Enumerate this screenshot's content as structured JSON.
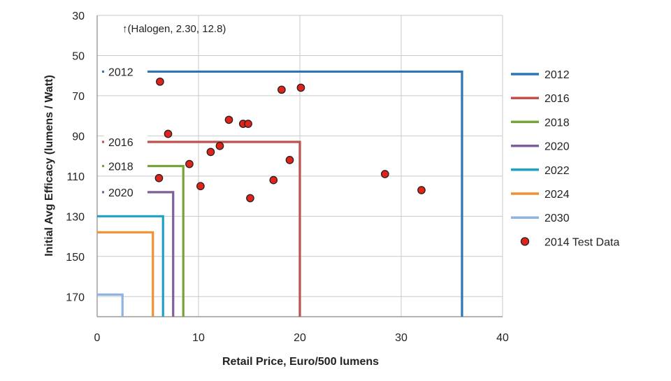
{
  "chart_data": {
    "type": "line",
    "xlabel": "Retail Price, Euro/500 lumens",
    "ylabel": "Initial Avg Efficacy (lumens / Watt)",
    "xlim": [
      0,
      40
    ],
    "ylim": [
      30,
      180
    ],
    "y_reversed": true,
    "xticks": [
      0,
      10,
      20,
      30,
      40
    ],
    "yticks": [
      30,
      50,
      70,
      90,
      110,
      130,
      150,
      170
    ],
    "grid": true,
    "legend_position": "right",
    "annotation": "↑(Halogen, 2.30, 12.8)",
    "series": [
      {
        "name": "2012",
        "color": "#2e75b6",
        "price_limit": 36,
        "efficacy_min": 58,
        "label": "2012"
      },
      {
        "name": "2016",
        "color": "#c0504d",
        "price_limit": 20,
        "efficacy_min": 93,
        "label": "2016"
      },
      {
        "name": "2018",
        "color": "#77a33a",
        "price_limit": 8.5,
        "efficacy_min": 105,
        "label": "2018"
      },
      {
        "name": "2020",
        "color": "#7f5f9b",
        "price_limit": 7.5,
        "efficacy_min": 118,
        "label": "2020"
      },
      {
        "name": "2022",
        "color": "#1ba3c6",
        "price_limit": 6.5,
        "efficacy_min": 130,
        "label": ""
      },
      {
        "name": "2024",
        "color": "#f38f2f",
        "price_limit": 5.5,
        "efficacy_min": 138,
        "label": ""
      },
      {
        "name": "2030",
        "color": "#8eb4e3",
        "price_limit": 2.5,
        "efficacy_min": 169,
        "label": ""
      }
    ],
    "scatter": {
      "name": "2014 Test Data",
      "color": "#e2231a",
      "points": [
        [
          6.2,
          63
        ],
        [
          7.0,
          89
        ],
        [
          6.1,
          111
        ],
        [
          9.1,
          104
        ],
        [
          10.2,
          115
        ],
        [
          11.2,
          98
        ],
        [
          12.1,
          95
        ],
        [
          13.0,
          82
        ],
        [
          14.4,
          84
        ],
        [
          14.9,
          84
        ],
        [
          15.1,
          121
        ],
        [
          17.4,
          112
        ],
        [
          18.2,
          67
        ],
        [
          19.0,
          102
        ],
        [
          20.1,
          66
        ],
        [
          28.4,
          109
        ],
        [
          32.0,
          117
        ]
      ]
    }
  }
}
